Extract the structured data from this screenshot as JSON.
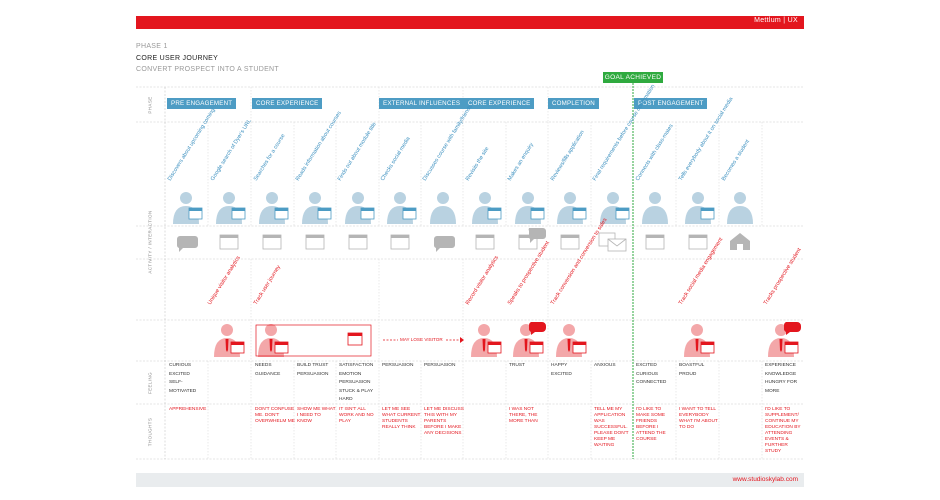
{
  "header": {
    "brand": "Mettlum | UX",
    "phase": "PHASE 1",
    "title": "CORE USER JOURNEY",
    "subtitle": "CONVERT PROSPECT INTO A STUDENT",
    "goal": "GOAL ACHIEVED"
  },
  "footer": {
    "url": "www.studioskylab.com"
  },
  "row_labels": [
    "PHASE",
    "ACTIVITY / INTERACTION",
    "FEELING",
    "THOUGHTS"
  ],
  "phases": [
    "PRE ENGAGEMENT",
    "CORE EXPERIENCE",
    "EXTERNAL INFLUENCES",
    "CORE EXPERIENCE",
    "COMPLETION",
    "POST ENGAGEMENT"
  ],
  "activities": [
    "Discovers about upcoming coming",
    "Google search of Dyer's URL",
    "Searches for a course",
    "Reads information about courses",
    "Finds out about module title",
    "Checks social media",
    "Discusses course with family/friends",
    "Revisits the site",
    "Makes an enquiry",
    "Reviews/fills application",
    "Final requirements before course confirmation",
    "Connects with class-mates",
    "Tells everybody about it on social media",
    "Becomes a student"
  ],
  "business_actions": [
    "Unique visitor analytics",
    "Track user journey",
    "Record visitor analytics",
    "Speaks to prospective student",
    "Track conversion and conversion to sales",
    "Track social media engagement",
    "Tracks prospective student"
  ],
  "may_lose_label": "MAY LOSE VISITOR",
  "feelings": [
    [
      "CURIOUS",
      "EXCITED",
      "SELF-MOTIVATED"
    ],
    [],
    [
      "NEEDS GUIDANCE"
    ],
    [
      "BUILD TRUST",
      "PERSUASION"
    ],
    [
      "SATISFACTION",
      "EMOTION",
      "PERSUASION",
      "STUCK & PLAY HARD"
    ],
    [
      "PERSUASION"
    ],
    [
      "PERSUASION"
    ],
    [],
    [
      "TRUST"
    ],
    [
      "HAPPY",
      "EXCITED"
    ],
    [
      "ANXIOUS"
    ],
    [
      "EXCITED",
      "CURIOUS",
      "CONNECTED"
    ],
    [
      "BOASTFUL",
      "PROUD"
    ],
    [],
    [
      "EXPERIENCE",
      "KNOWLEDGE",
      "HUNGRY FOR MORE"
    ]
  ],
  "thoughts": [
    "APPREHENSIVE",
    "",
    "DON'T CONFUSE ME. DON'T OVERWHELM ME",
    "SHOW ME WHAT I NEED TO KNOW",
    "IT ISN'T ALL WORK AND NO PLAY",
    "LET ME SEE WHAT CURRENT STUDENTS REALLY THINK",
    "LET ME DISCUSS THIS WITH MY PARENTS BEFORE I MAKE ANY DECISIONS",
    "",
    "I WAS NOT THERE, THE MORE THAN",
    "",
    "TELL ME MY APPLICATION WAS SUCCESSFUL. PLEASE DON'T KEEP ME WAITING",
    "I'D LIKE TO MAKE SOME FRIENDS BEFORE I ATTEND THE COURSE",
    "I WANT TO TELL EVERYBODY WHAT I'M ABOUT TO DO",
    "",
    "I'D LIKE TO SUPPLEMENT/ CONTINUE MY EDUCATION BY ATTENDING EVENTS & FURTHER STUDY"
  ]
}
